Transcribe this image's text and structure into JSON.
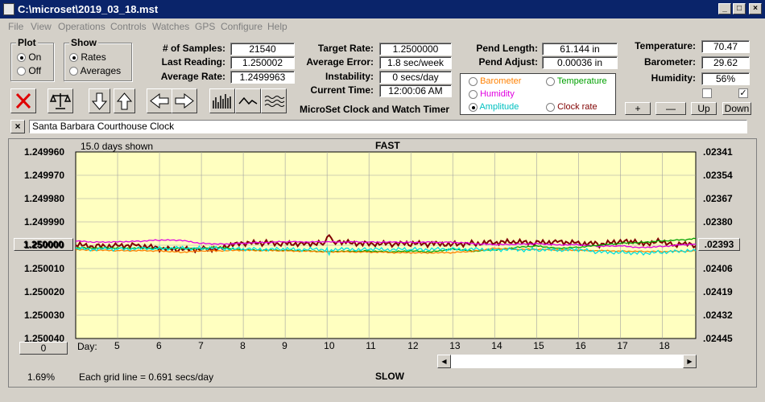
{
  "window": {
    "title": "C:\\microset\\2019_03_18.mst"
  },
  "menu": [
    "File",
    "View",
    "Operations",
    "Controls",
    "Watches",
    "GPS",
    "Configure",
    "Help"
  ],
  "plot_group": {
    "label": "Plot",
    "options": [
      "On",
      "Off"
    ],
    "selected": "On"
  },
  "show_group": {
    "label": "Show",
    "options": [
      "Rates",
      "Averages"
    ],
    "selected": "Rates"
  },
  "stats": {
    "samples_label": "# of Samples:",
    "samples": "21540",
    "last_label": "Last Reading:",
    "last": "1.250002",
    "avg_label": "Average Rate:",
    "avg": "1.2499963"
  },
  "target": {
    "rate_label": "Target Rate:",
    "rate": "1.2500000",
    "err_label": "Average Error:",
    "err": "1.8 sec/week",
    "inst_label": "Instability:",
    "inst": "0 secs/day",
    "time_label": "Current Time:",
    "time": "12:00:06 AM",
    "app_name": "MicroSet Clock and Watch Timer"
  },
  "pend": {
    "len_label": "Pend Length:",
    "len": "61.144 in",
    "adj_label": "Pend Adjust:",
    "adj": "0.00036 in"
  },
  "series_select": {
    "barometer": "Barometer",
    "temperature": "Temperature",
    "humidity": "Humidity",
    "amplitude": "Amplitude",
    "clock_rate": "Clock rate",
    "selected": "Amplitude",
    "colors": {
      "barometer": "#ff8000",
      "temperature": "#00a000",
      "humidity": "#e000e0",
      "amplitude": "#00c0c0"
    }
  },
  "env": {
    "temp_label": "Temperature:",
    "temp": "70.47",
    "baro_label": "Barometer:",
    "baro": "29.62",
    "hum_label": "Humidity:",
    "hum": "56%"
  },
  "env_buttons": {
    "plus": "+",
    "minus": "—",
    "up": "Up",
    "down": "Down"
  },
  "clock_name": "Santa Barbara Courthouse Clock",
  "plot": {
    "days_shown": "15.0 days shown",
    "fast": "FAST",
    "slow": "SLOW",
    "grid_note": "Each grid line = 0.691 secs/day",
    "percent": "1.69%",
    "center_button": "1.250000",
    "zero_button": "0",
    "right_button": ".02393",
    "day_label": "Day:",
    "colors": {
      "background": "#ffffc0",
      "rate": "#800000",
      "accent": "#0a246a"
    }
  },
  "chart_data": {
    "type": "line",
    "xlabel": "Day:",
    "x_ticks": [
      "5",
      "6",
      "7",
      "8",
      "9",
      "10",
      "11",
      "12",
      "13",
      "14",
      "15",
      "16",
      "17",
      "18"
    ],
    "xlim": [
      4.0,
      18.8
    ],
    "y_left_ticks": [
      "1.249960",
      "1.249970",
      "1.249980",
      "1.249990",
      "1.250000",
      "1.250010",
      "1.250020",
      "1.250030",
      "1.250040"
    ],
    "y_right_ticks": [
      ".02341",
      ".02354",
      ".02367",
      ".02380",
      ".02393",
      ".02406",
      ".02419",
      ".02432",
      ".02445"
    ],
    "ylim": [
      1.24996,
      1.25004
    ],
    "series": [
      {
        "key": "rate",
        "color": "#800000",
        "x": [
          4.0,
          4.5,
          5.0,
          5.5,
          6.0,
          6.5,
          7.0,
          7.3,
          7.5,
          8.0,
          8.5,
          9.0,
          9.5,
          9.9,
          10.05,
          10.2,
          10.5,
          11.0,
          11.5,
          12.0,
          12.5,
          13.0,
          13.5,
          14.0,
          14.5,
          15.0,
          15.5,
          16.0,
          16.5,
          17.0,
          17.3,
          17.5,
          18.0,
          18.3,
          18.5,
          18.8
        ],
        "y": [
          1.25,
          1.2500005,
          1.25,
          1.25,
          1.2500015,
          1.250002,
          1.2500015,
          1.2500018,
          1.2500005,
          1.2499993,
          1.249999,
          1.2499993,
          1.2499992,
          1.249999,
          1.249996,
          1.249999,
          1.249999,
          1.2499992,
          1.2499995,
          1.2499994,
          1.2499995,
          1.2499994,
          1.2499992,
          1.2499988,
          1.2499987,
          1.249999,
          1.2499983,
          1.249999,
          1.2499996,
          1.2499986,
          1.2499987,
          1.2499993,
          1.2499982,
          1.2499998,
          1.2499995,
          1.2500003
        ]
      },
      {
        "key": "humidity",
        "color": "#e000e0",
        "x": [
          4.0,
          4.5,
          5.0,
          5.5,
          6.0,
          6.5,
          7.0,
          7.5,
          8.0,
          9.0,
          10.0,
          11.0,
          12.0,
          13.0,
          14.0,
          14.5,
          15.0,
          15.5,
          16.0,
          16.5,
          17.0,
          17.5,
          18.0,
          18.5,
          18.8
        ],
        "y": [
          1.2499982,
          1.2499987,
          1.2499985,
          1.2499983,
          1.2499978,
          1.2499979,
          1.2499992,
          1.2499995,
          1.2499991,
          1.2499985,
          1.2499986,
          1.2499986,
          1.2499987,
          1.2499987,
          1.2499998,
          1.2499996,
          1.2499993,
          1.2499998,
          1.2499998,
          1.2500005,
          1.2500003,
          1.250001,
          1.2500005,
          1.2499998,
          1.2499996
        ]
      },
      {
        "key": "temperature",
        "color": "#00a000",
        "x": [
          4.0,
          5.0,
          6.0,
          7.0,
          7.3,
          8.0,
          9.0,
          10.0,
          11.0,
          11.5,
          12.0,
          12.5,
          13.0,
          13.5,
          14.0,
          14.5,
          15.0,
          15.5,
          16.0,
          16.5,
          17.0,
          17.5,
          18.0,
          18.5,
          18.8
        ],
        "y": [
          1.2500012,
          1.2500012,
          1.2500014,
          1.2500015,
          1.2500008,
          1.250002,
          1.2500022,
          1.2500027,
          1.2500025,
          1.2500029,
          1.2500025,
          1.2500028,
          1.2500016,
          1.2500025,
          1.2500021,
          1.250001,
          1.2500003,
          1.2500013,
          1.2500009,
          1.25,
          1.2499992,
          1.2499988,
          1.2499981,
          1.2499977,
          1.2499972
        ]
      },
      {
        "key": "barometer",
        "color": "#ff8000",
        "x": [
          4.0,
          5.0,
          6.0,
          6.5,
          7.0,
          8.0,
          9.0,
          10.0,
          11.0,
          12.0,
          13.0,
          13.5,
          14.0,
          14.5,
          15.0,
          16.0,
          17.0,
          17.5,
          18.0,
          18.8
        ],
        "y": [
          1.250002,
          1.2500023,
          1.2500024,
          1.250003,
          1.2500025,
          1.2500022,
          1.2500024,
          1.2500028,
          1.2500029,
          1.2500033,
          1.2500032,
          1.2500025,
          1.2500013,
          1.2500018,
          1.2500018,
          1.2500022,
          1.2500025,
          1.2500026,
          1.2500027,
          1.2500025
        ]
      },
      {
        "key": "amplitude",
        "color": "#00e0e0",
        "x": [
          4.0,
          5.0,
          6.0,
          7.0,
          8.0,
          9.0,
          10.0,
          10.05,
          10.1,
          11.0,
          12.0,
          13.0,
          14.0,
          15.0,
          16.0,
          16.5,
          17.0,
          17.5,
          18.0,
          18.5,
          18.8
        ],
        "y": [
          1.2500017,
          1.2500016,
          1.2500013,
          1.2500012,
          1.2500017,
          1.2500018,
          1.2500018,
          1.250004,
          1.2500017,
          1.2500018,
          1.2500018,
          1.2500017,
          1.2500018,
          1.250002,
          1.250002,
          1.250003,
          1.250003,
          1.2500034,
          1.250003,
          1.2500026,
          1.2500025
        ]
      }
    ]
  }
}
